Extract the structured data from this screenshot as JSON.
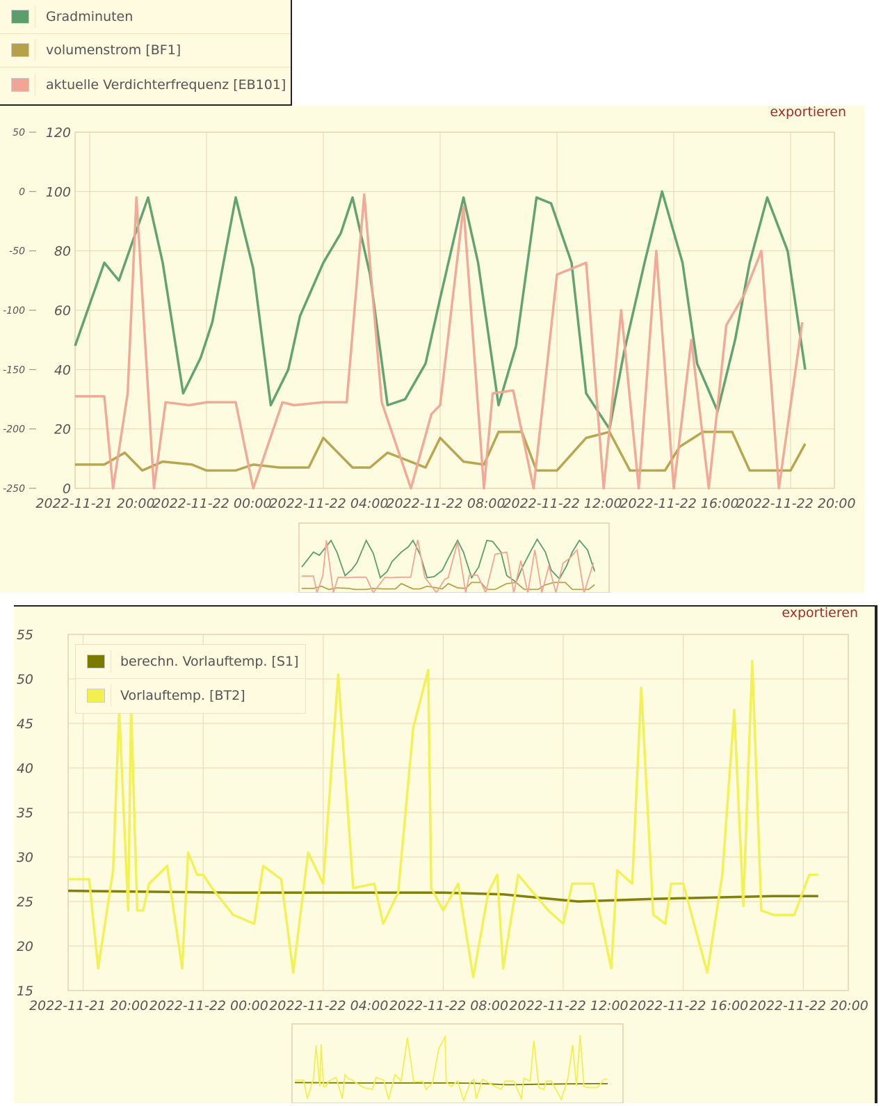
{
  "chart1": {
    "export_label": "exportieren",
    "legend": [
      {
        "name": "Gradminuten",
        "color": "#5b9e6b"
      },
      {
        "name": "volumenstrom [BF1]",
        "color": "#b5a14a"
      },
      {
        "name": "aktuelle Verdichterfrequenz [EB101]",
        "color": "#f0a595"
      }
    ]
  },
  "chart2": {
    "export_label": "exportieren",
    "legend": [
      {
        "name": "berechn. Vorlauftemp. [S1]",
        "color": "#7a7a00"
      },
      {
        "name": "Vorlauftemp. [BT2]",
        "color": "#f2f050"
      }
    ]
  },
  "chart_data": [
    {
      "type": "line",
      "x_ticks": [
        "2022-11-21 20:00",
        "2022-11-22 00:00",
        "2022-11-22 04:00",
        "2022-11-22 08:00",
        "2022-11-22 12:00",
        "2022-11-22 16:00",
        "2022-11-22 20:00"
      ],
      "x_range_hours": [
        -0.5,
        25.5
      ],
      "left_axis": {
        "ticks": [
          -250,
          -200,
          -150,
          -100,
          -50,
          0,
          50
        ],
        "range": [
          -250,
          50
        ]
      },
      "right_axis": {
        "ticks": [
          0,
          20,
          40,
          60,
          80,
          100,
          120
        ],
        "range": [
          0,
          120
        ]
      },
      "grid": true,
      "legend_position": "top-left",
      "series": [
        {
          "name": "Gradminuten",
          "axis": "left",
          "color": "#5b9e6b",
          "x": [
            -0.5,
            0.5,
            1.0,
            1.5,
            2.0,
            2.5,
            3.2,
            3.8,
            4.2,
            5.0,
            5.6,
            6.2,
            6.8,
            7.2,
            8.0,
            8.6,
            9.0,
            9.6,
            10.2,
            10.8,
            11.5,
            12.0,
            12.8,
            13.3,
            14.0,
            14.6,
            15.3,
            15.8,
            16.5,
            17.0,
            17.8,
            18.3,
            19.0,
            19.6,
            20.3,
            20.8,
            21.5,
            22.1,
            22.6,
            23.2,
            23.9,
            24.5
          ],
          "y": [
            -130,
            -60,
            -75,
            -40,
            -5,
            -60,
            -170,
            -140,
            -110,
            -5,
            -65,
            -180,
            -150,
            -105,
            -60,
            -35,
            -5,
            -70,
            -180,
            -175,
            -145,
            -90,
            -5,
            -60,
            -180,
            -130,
            -5,
            -10,
            -60,
            -170,
            -200,
            -135,
            -60,
            0,
            -60,
            -145,
            -185,
            -125,
            -60,
            -5,
            -50,
            -150
          ]
        },
        {
          "name": "volumenstrom [BF1]",
          "axis": "right",
          "color": "#b5a14a",
          "x": [
            -0.5,
            0.5,
            1.2,
            1.8,
            2.5,
            3.5,
            4.0,
            5.0,
            5.6,
            6.5,
            7.5,
            8.0,
            9.0,
            9.6,
            10.2,
            11.5,
            12.0,
            12.8,
            13.5,
            14.0,
            14.8,
            15.3,
            16.0,
            17.0,
            17.8,
            18.5,
            19.0,
            19.7,
            20.2,
            21.0,
            22.0,
            22.6,
            23.2,
            24.0,
            24.5
          ],
          "y": [
            8,
            8,
            12,
            6,
            9,
            8,
            6,
            6,
            8,
            7,
            7,
            17,
            7,
            7,
            12,
            7,
            17,
            9,
            8,
            19,
            19,
            6,
            6,
            17,
            19,
            6,
            6,
            6,
            14,
            19,
            19,
            6,
            6,
            6,
            15
          ]
        },
        {
          "name": "aktuelle Verdichterfrequenz [EB101]",
          "axis": "right",
          "color": "#f0a595",
          "x": [
            -0.5,
            0.5,
            0.8,
            1.3,
            1.6,
            2.2,
            2.6,
            3.4,
            4.0,
            5.0,
            5.6,
            6.6,
            7.0,
            8.0,
            8.8,
            9.4,
            10.0,
            11.0,
            11.7,
            12.0,
            12.8,
            13.5,
            13.8,
            14.5,
            15.2,
            16.0,
            17.0,
            17.6,
            18.2,
            18.8,
            19.4,
            20.0,
            20.6,
            21.2,
            21.8,
            22.4,
            23.0,
            23.6,
            24.4
          ],
          "y": [
            31,
            31,
            0,
            32,
            98,
            0,
            29,
            28,
            29,
            29,
            0,
            29,
            28,
            29,
            29,
            99,
            29,
            0,
            25,
            28,
            95,
            0,
            32,
            33,
            0,
            72,
            76,
            0,
            60,
            0,
            80,
            0,
            50,
            0,
            55,
            65,
            80,
            0,
            56
          ]
        }
      ]
    },
    {
      "type": "line",
      "x_ticks": [
        "2022-11-21 20:00",
        "2022-11-22 00:00",
        "2022-11-22 04:00",
        "2022-11-22 08:00",
        "2022-11-22 12:00",
        "2022-11-22 16:00",
        "2022-11-22 20:00"
      ],
      "x_range_hours": [
        -0.5,
        25.5
      ],
      "y_axis": {
        "ticks": [
          15,
          20,
          25,
          30,
          35,
          40,
          45,
          50,
          55
        ],
        "range": [
          15,
          55
        ]
      },
      "grid": true,
      "legend_position": "top-left",
      "series": [
        {
          "name": "berechn. Vorlauftemp. [S1]",
          "color": "#7a7a00",
          "x": [
            -0.5,
            2.0,
            5.0,
            8.0,
            12.0,
            14.0,
            16.5,
            19.0,
            23.0,
            24.5
          ],
          "y": [
            26.2,
            26.1,
            26.0,
            26.0,
            26.0,
            25.8,
            25.0,
            25.3,
            25.6,
            25.6
          ]
        },
        {
          "name": "Vorlauftemp. [BT2]",
          "color": "#f2f050",
          "x": [
            -0.5,
            0.2,
            0.5,
            1.0,
            1.2,
            1.5,
            1.6,
            1.8,
            2.0,
            2.2,
            2.8,
            3.3,
            3.5,
            3.8,
            4.0,
            4.3,
            5.0,
            5.7,
            6.0,
            6.6,
            7.0,
            7.5,
            8.0,
            8.5,
            9.0,
            9.7,
            10.0,
            10.5,
            11.0,
            11.5,
            11.6,
            12.0,
            12.5,
            13.0,
            13.5,
            13.8,
            14.0,
            14.5,
            15.0,
            15.5,
            16.0,
            16.3,
            17.0,
            17.6,
            17.8,
            18.3,
            18.6,
            19.0,
            19.4,
            19.6,
            20.0,
            20.8,
            21.3,
            21.7,
            22.0,
            22.3,
            22.6,
            23.0,
            23.7,
            24.2,
            24.5
          ],
          "y": [
            27.5,
            27.5,
            17.5,
            28.5,
            46.5,
            24.0,
            47.0,
            24.0,
            24.0,
            27.0,
            29.0,
            17.5,
            30.5,
            28.0,
            28.0,
            26.5,
            23.5,
            22.5,
            29.0,
            27.5,
            17.0,
            30.5,
            27.0,
            50.5,
            26.5,
            27.0,
            22.5,
            26.0,
            44.5,
            51.0,
            26.5,
            24.0,
            27.0,
            16.5,
            26.0,
            28.0,
            17.5,
            28.0,
            26.0,
            24.0,
            22.5,
            27.0,
            27.0,
            17.5,
            28.5,
            27.0,
            49.0,
            23.5,
            22.5,
            27.0,
            27.0,
            17.0,
            28.0,
            46.5,
            24.5,
            52.0,
            24.0,
            23.5,
            23.5,
            28.0,
            28.0
          ]
        }
      ]
    }
  ]
}
